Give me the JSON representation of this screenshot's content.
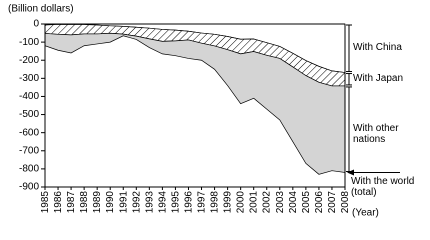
{
  "chart_data": {
    "type": "stacked_area",
    "y_label": "(Billion dollars)",
    "x_label": "(Year)",
    "categories": [
      "1985",
      "1986",
      "1987",
      "1988",
      "1989",
      "1990",
      "1991",
      "1992",
      "1993",
      "1994",
      "1995",
      "1996",
      "1997",
      "1998",
      "1999",
      "2000",
      "2001",
      "2002",
      "2003",
      "2004",
      "2005",
      "2006",
      "2007",
      "2008"
    ],
    "series": [
      {
        "name": "With China",
        "color": "#ffffff",
        "pattern": "none",
        "values": [
          -6,
          -2,
          -3,
          -3,
          -6,
          -10,
          -13,
          -18,
          -23,
          -30,
          -34,
          -40,
          -50,
          -57,
          -69,
          -84,
          -83,
          -103,
          -124,
          -162,
          -202,
          -234,
          -259,
          -268
        ]
      },
      {
        "name": "With Japan",
        "color": "#ffffff",
        "pattern": "hatch",
        "values": [
          -46,
          -55,
          -57,
          -52,
          -49,
          -41,
          -43,
          -49,
          -59,
          -66,
          -59,
          -48,
          -56,
          -64,
          -73,
          -81,
          -69,
          -70,
          -66,
          -75,
          -83,
          -88,
          -83,
          -74
        ]
      },
      {
        "name": "With other nations",
        "color": "#d4d4d4",
        "pattern": "none",
        "values": [
          -68,
          -88,
          -100,
          -65,
          -55,
          -49,
          -9,
          -18,
          -48,
          -69,
          -82,
          -102,
          -94,
          -129,
          -198,
          -275,
          -258,
          -297,
          -340,
          -413,
          -485,
          -508,
          -468,
          -478
        ]
      }
    ],
    "annotation": "With the world (total)",
    "ylim": [
      -900,
      0
    ],
    "yticks": [
      0,
      -100,
      -200,
      -300,
      -400,
      -500,
      -600,
      -700,
      -800,
      -900
    ]
  }
}
